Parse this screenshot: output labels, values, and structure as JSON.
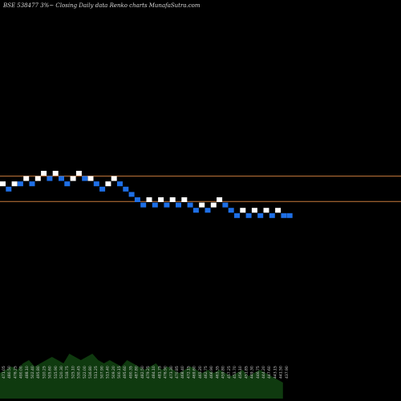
{
  "chart_data": {
    "type": "renko",
    "title": "BSE 538477 3%~ Closing Daily data Renko charts MunafaSutra.com",
    "colors": {
      "background": "#000000",
      "up_brick": "#ffffff",
      "down_brick": "#1e6fe6",
      "reference_line": "#c87a3c",
      "volume_fill": "#0f3a0f",
      "volume_label": "#d0d0d0"
    },
    "bricks": [
      {
        "dir": "up",
        "level": 12
      },
      {
        "dir": "down",
        "level": 13
      },
      {
        "dir": "up",
        "level": 12
      },
      {
        "dir": "down",
        "level": 12
      },
      {
        "dir": "up",
        "level": 11
      },
      {
        "dir": "down",
        "level": 12
      },
      {
        "dir": "up",
        "level": 11
      },
      {
        "dir": "up",
        "level": 10
      },
      {
        "dir": "down",
        "level": 11
      },
      {
        "dir": "up",
        "level": 10
      },
      {
        "dir": "down",
        "level": 11
      },
      {
        "dir": "down",
        "level": 12
      },
      {
        "dir": "up",
        "level": 11
      },
      {
        "dir": "up",
        "level": 10
      },
      {
        "dir": "down",
        "level": 11
      },
      {
        "dir": "up",
        "level": 11
      },
      {
        "dir": "down",
        "level": 12
      },
      {
        "dir": "down",
        "level": 13
      },
      {
        "dir": "up",
        "level": 12
      },
      {
        "dir": "up",
        "level": 11
      },
      {
        "dir": "down",
        "level": 12
      },
      {
        "dir": "down",
        "level": 13
      },
      {
        "dir": "down",
        "level": 14
      },
      {
        "dir": "down",
        "level": 15
      },
      {
        "dir": "down",
        "level": 16
      },
      {
        "dir": "up",
        "level": 15
      },
      {
        "dir": "down",
        "level": 16
      },
      {
        "dir": "up",
        "level": 15
      },
      {
        "dir": "down",
        "level": 16
      },
      {
        "dir": "up",
        "level": 15
      },
      {
        "dir": "down",
        "level": 16
      },
      {
        "dir": "up",
        "level": 15
      },
      {
        "dir": "down",
        "level": 16
      },
      {
        "dir": "down",
        "level": 17
      },
      {
        "dir": "up",
        "level": 16
      },
      {
        "dir": "down",
        "level": 17
      },
      {
        "dir": "up",
        "level": 16
      },
      {
        "dir": "up",
        "level": 15
      },
      {
        "dir": "down",
        "level": 16
      },
      {
        "dir": "down",
        "level": 17
      },
      {
        "dir": "down",
        "level": 18
      },
      {
        "dir": "up",
        "level": 17
      },
      {
        "dir": "down",
        "level": 18
      },
      {
        "dir": "up",
        "level": 17
      },
      {
        "dir": "down",
        "level": 18
      },
      {
        "dir": "up",
        "level": 17
      },
      {
        "dir": "down",
        "level": 18
      },
      {
        "dir": "up",
        "level": 17
      },
      {
        "dir": "down",
        "level": 18
      },
      {
        "dir": "down",
        "level": 18
      }
    ],
    "reference_lines": [
      11.0,
      15.8
    ],
    "volume_values": [
      8,
      9,
      10,
      9,
      11,
      12,
      10,
      11,
      12,
      13,
      12,
      11,
      14,
      13,
      12,
      13,
      14,
      12,
      11,
      12,
      11,
      10,
      12,
      11,
      10,
      9,
      10,
      11,
      9,
      10,
      9,
      8,
      9,
      10,
      9,
      8,
      9,
      8,
      9,
      8,
      7,
      8,
      9,
      7,
      8,
      9,
      8,
      7,
      6,
      5
    ],
    "volume_labels": [
      "471.05",
      "480.50",
      "476.25",
      "490.00",
      "488.10",
      "502.40",
      "495.80",
      "510.25",
      "505.60",
      "515.90",
      "520.30",
      "518.75",
      "525.10",
      "530.45",
      "522.00",
      "516.80",
      "511.25",
      "507.90",
      "513.40",
      "509.20",
      "500.15",
      "495.60",
      "490.35",
      "487.80",
      "482.50",
      "479.25",
      "484.10",
      "481.75",
      "476.90",
      "473.30",
      "470.85",
      "468.40",
      "472.15",
      "469.60",
      "465.20",
      "462.75",
      "466.90",
      "463.35",
      "459.80",
      "457.25",
      "453.70",
      "456.10",
      "451.85",
      "449.30",
      "446.75",
      "444.20",
      "447.60",
      "443.15",
      "441.50",
      "437.90"
    ]
  }
}
